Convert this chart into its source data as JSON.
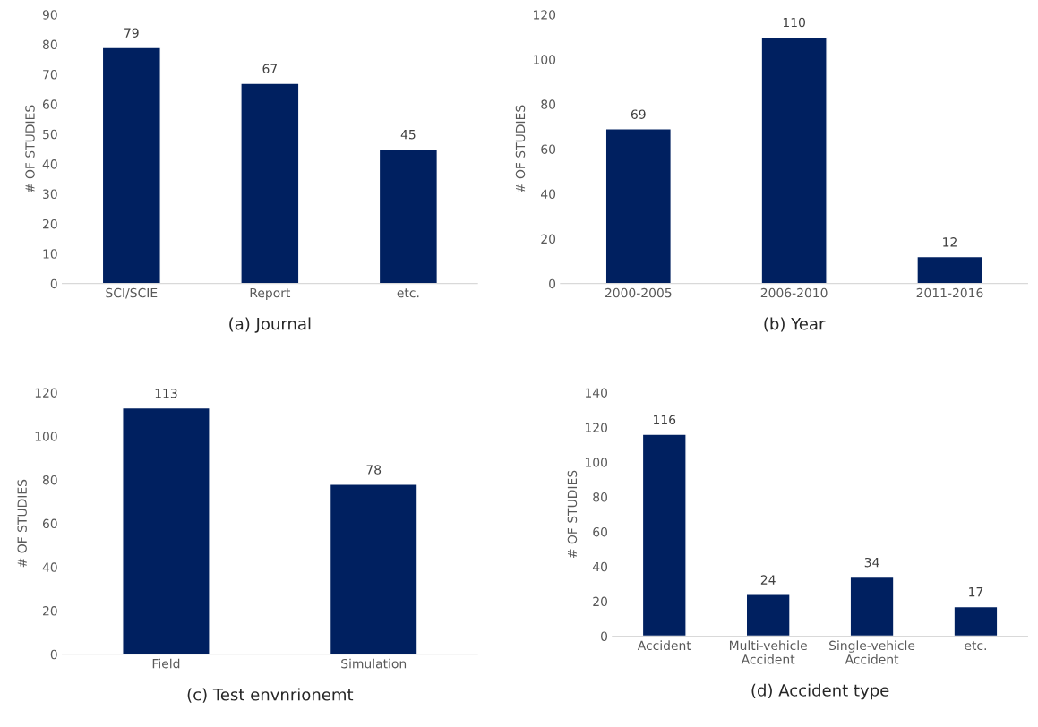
{
  "chart_data": [
    {
      "type": "bar",
      "xlabel": "(a) Journal",
      "ylabel": "# OF STUDIES",
      "categories": [
        "SCI/SCIE",
        "Report",
        "etc."
      ],
      "values": [
        79,
        67,
        45
      ],
      "color": "#002060",
      "ylim": [
        0,
        90
      ],
      "yticks": [
        0,
        10,
        20,
        30,
        40,
        50,
        60,
        70,
        80,
        90
      ],
      "data_labels": true
    },
    {
      "type": "bar",
      "xlabel": "(b) Year",
      "ylabel": "# OF STUDIES",
      "categories": [
        "2000-2005",
        "2006-2010",
        "2011-2016"
      ],
      "values": [
        69,
        110,
        12
      ],
      "color": "#002060",
      "ylim": [
        0,
        120
      ],
      "yticks": [
        0,
        20,
        40,
        60,
        80,
        100,
        120
      ],
      "data_labels": true
    },
    {
      "type": "bar",
      "xlabel": "(c) Test envnrionemt",
      "ylabel": "# OF STUDIES",
      "categories": [
        "Field",
        "Simulation"
      ],
      "values": [
        113,
        78
      ],
      "color": "#002060",
      "ylim": [
        0,
        120
      ],
      "yticks": [
        0,
        20,
        40,
        60,
        80,
        100,
        120
      ],
      "data_labels": true
    },
    {
      "type": "bar",
      "xlabel": "(d) Accident type",
      "ylabel": "# OF STUDIES",
      "categories": [
        "Accident",
        "Multi-vehicle\nAccident",
        "Single-vehicle\nAccident",
        "etc."
      ],
      "values": [
        116,
        24,
        34,
        17
      ],
      "color": "#002060",
      "ylim": [
        0,
        140
      ],
      "yticks": [
        0,
        20,
        40,
        60,
        80,
        100,
        120,
        140
      ],
      "data_labels": true
    }
  ]
}
